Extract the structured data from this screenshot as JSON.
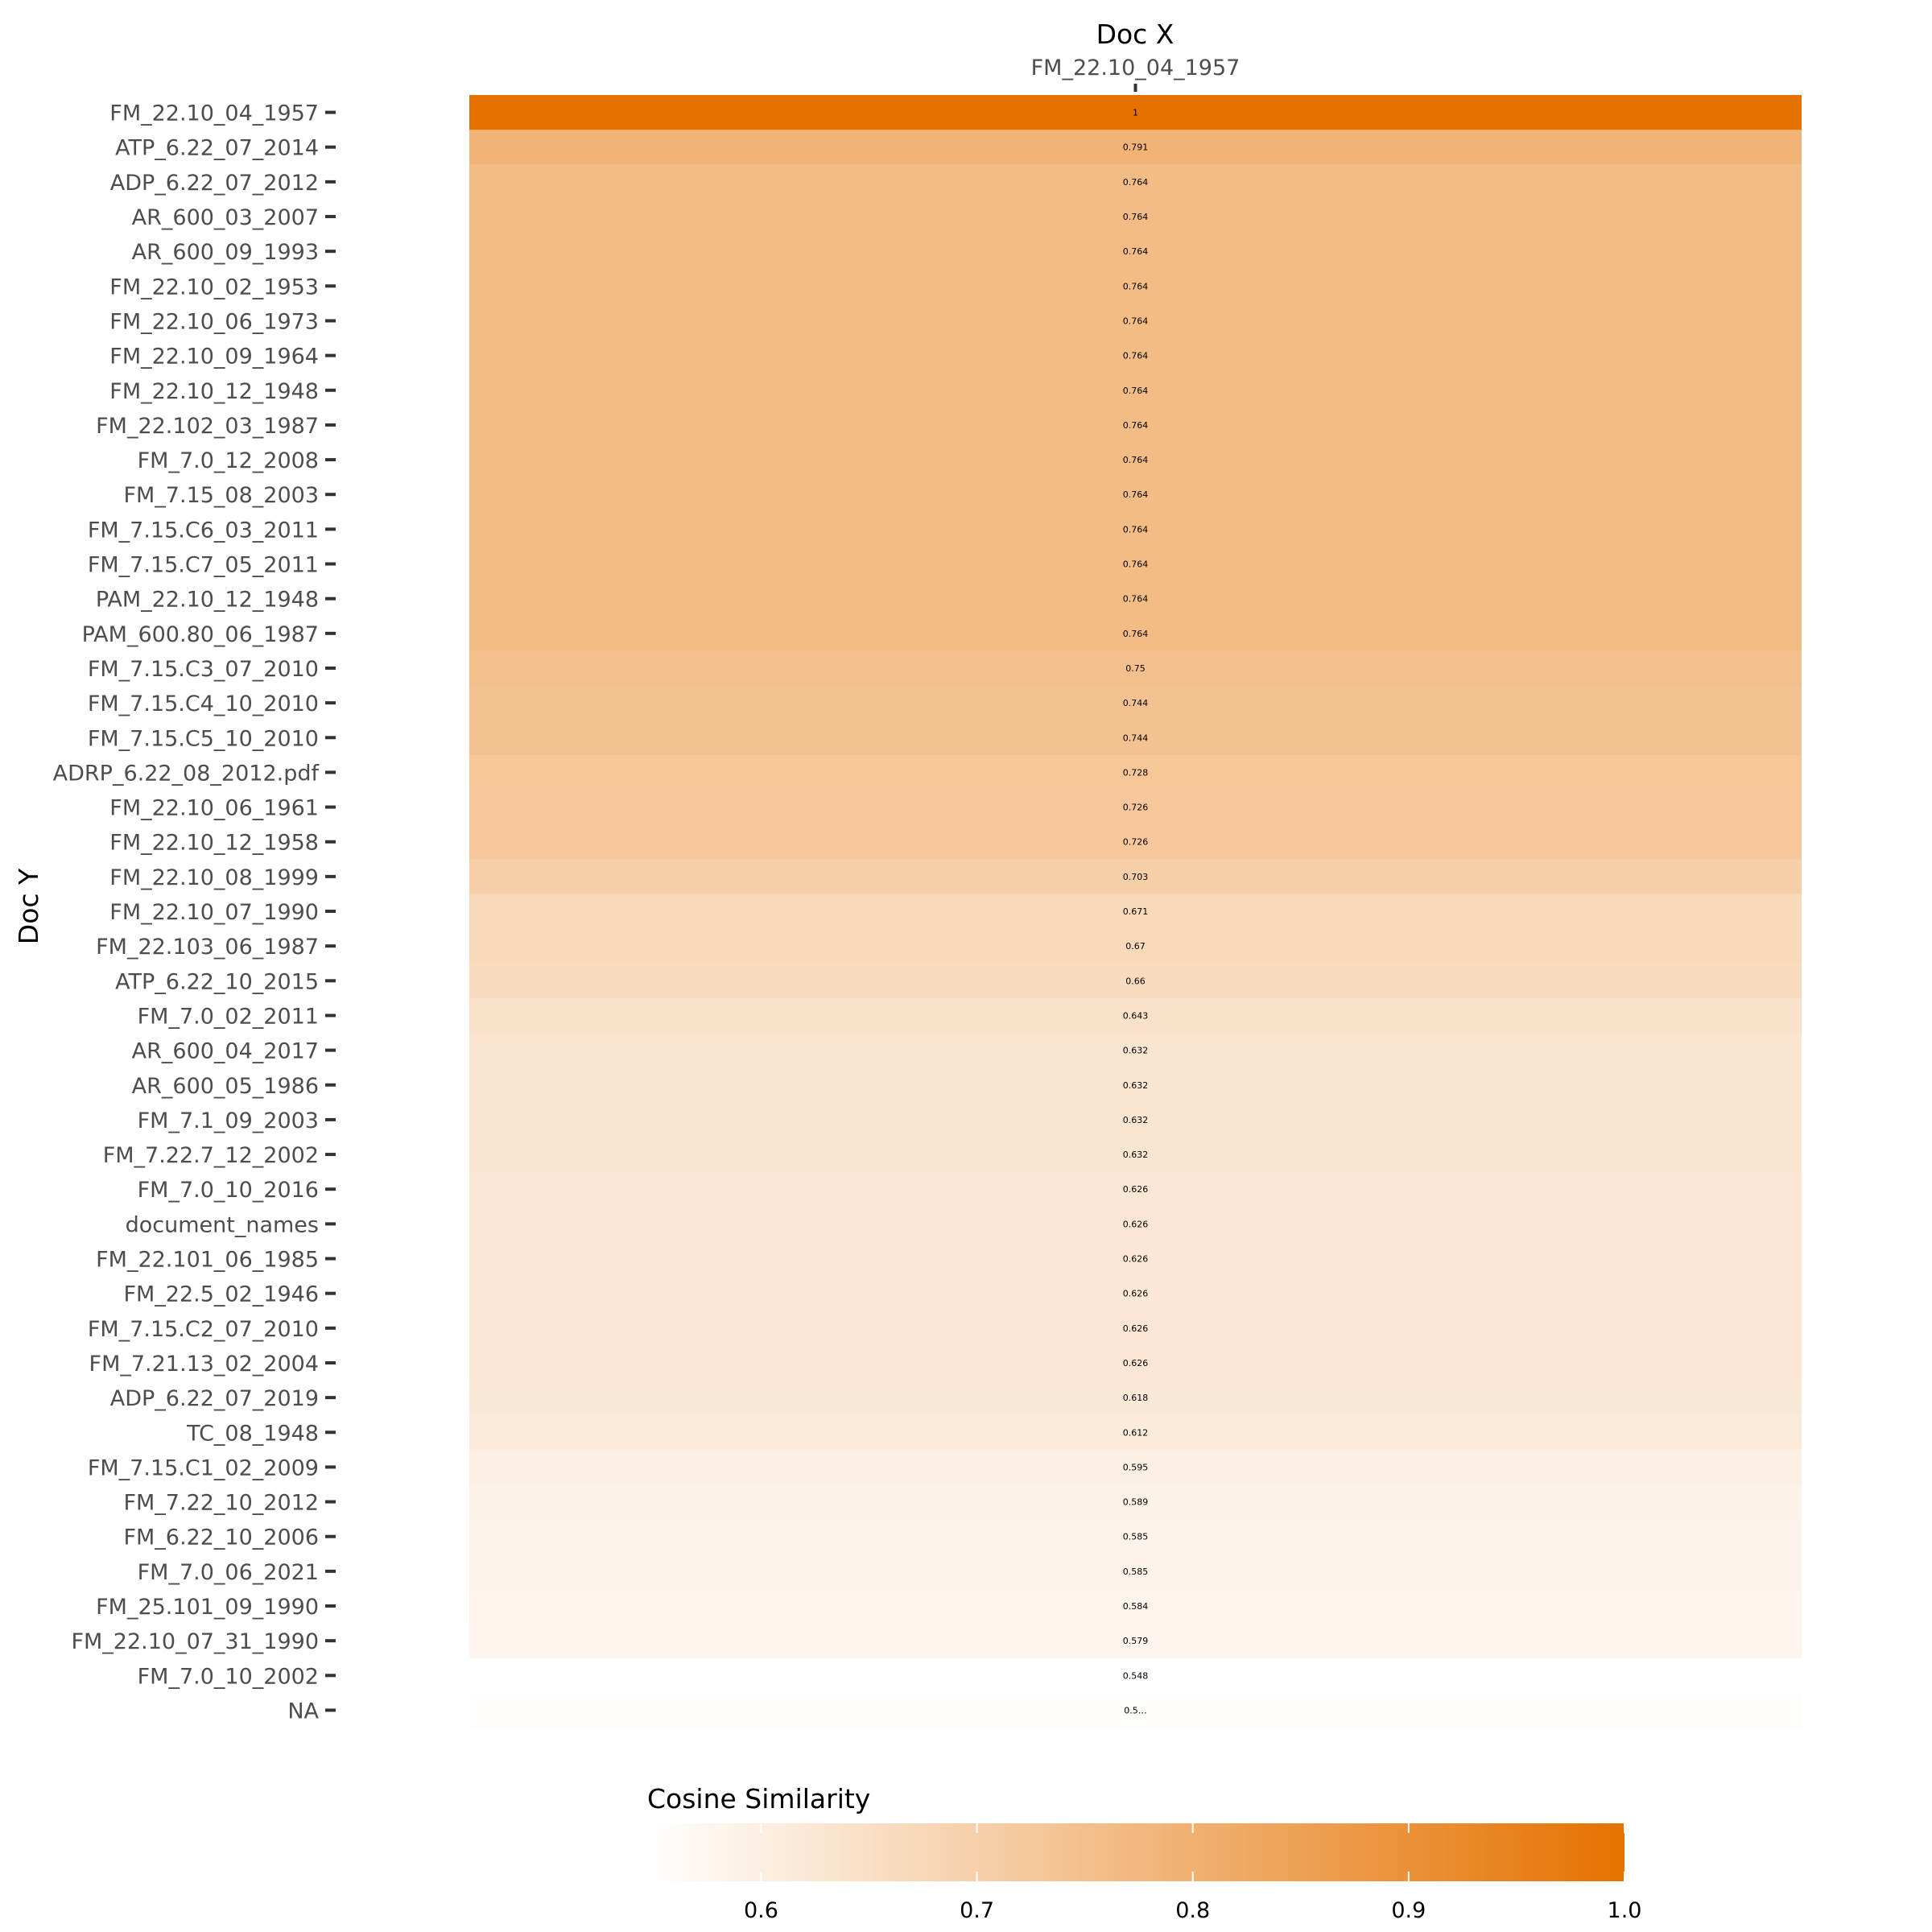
{
  "chart_data": {
    "type": "heatmap",
    "title": "",
    "xlabel": "Doc X",
    "ylabel": "Doc Y",
    "x_categories": [
      "FM_22.10_04_1957"
    ],
    "y_categories": [
      "FM_22.10_04_1957",
      "ATP_6.22_07_2014",
      "ADP_6.22_07_2012",
      "AR_600_03_2007",
      "AR_600_09_1993",
      "FM_22.10_02_1953",
      "FM_22.10_06_1973",
      "FM_22.10_09_1964",
      "FM_22.10_12_1948",
      "FM_22.102_03_1987",
      "FM_7.0_12_2008",
      "FM_7.15_08_2003",
      "FM_7.15.C6_03_2011",
      "FM_7.15.C7_05_2011",
      "PAM_22.10_12_1948",
      "PAM_600.80_06_1987",
      "FM_7.15.C3_07_2010",
      "FM_7.15.C4_10_2010",
      "FM_7.15.C5_10_2010",
      "ADRP_6.22_08_2012.pdf",
      "FM_22.10_06_1961",
      "FM_22.10_12_1958",
      "FM_22.10_08_1999",
      "FM_22.10_07_1990",
      "FM_22.103_06_1987",
      "ATP_6.22_10_2015",
      "FM_7.0_02_2011",
      "AR_600_04_2017",
      "AR_600_05_1986",
      "FM_7.1_09_2003",
      "FM_7.22.7_12_2002",
      "FM_7.0_10_2016",
      "document_names",
      "FM_22.101_06_1985",
      "FM_22.5_02_1946",
      "FM_7.15.C2_07_2010",
      "FM_7.21.13_02_2004",
      "ADP_6.22_07_2019",
      "TC_08_1948",
      "FM_7.15.C1_02_2009",
      "FM_7.22_10_2012",
      "FM_6.22_10_2006",
      "FM_7.0_06_2021",
      "FM_25.101_09_1990",
      "FM_22.10_07_31_1990",
      "FM_7.0_10_2002",
      "NA"
    ],
    "values": [
      1,
      0.791,
      0.764,
      0.764,
      0.764,
      0.764,
      0.764,
      0.764,
      0.764,
      0.764,
      0.764,
      0.764,
      0.764,
      0.764,
      0.764,
      0.764,
      0.75,
      0.744,
      0.744,
      0.728,
      0.726,
      0.726,
      0.703,
      0.671,
      0.67,
      0.66,
      0.643,
      0.632,
      0.632,
      0.632,
      0.632,
      0.626,
      0.626,
      0.626,
      0.626,
      0.626,
      0.626,
      0.618,
      0.612,
      0.595,
      0.589,
      0.585,
      0.585,
      0.584,
      0.579,
      0.548,
      null
    ],
    "value_labels": [
      "1",
      "0.791",
      "0.764",
      "0.764",
      "0.764",
      "0.764",
      "0.764",
      "0.764",
      "0.764",
      "0.764",
      "0.764",
      "0.764",
      "0.764",
      "0.764",
      "0.764",
      "0.764",
      "0.75",
      "0.744",
      "0.744",
      "0.728",
      "0.726",
      "0.726",
      "0.703",
      "0.671",
      "0.67",
      "0.66",
      "0.643",
      "0.632",
      "0.632",
      "0.632",
      "0.632",
      "0.626",
      "0.626",
      "0.626",
      "0.626",
      "0.626",
      "0.626",
      "0.618",
      "0.612",
      "0.595",
      "0.589",
      "0.585",
      "0.585",
      "0.584",
      "0.579",
      "0.548",
      "0.5…"
    ],
    "legend": {
      "title": "Cosine Similarity",
      "position": "bottom",
      "min": 0.548,
      "max": 1.0,
      "ticks": [
        "0.6",
        "0.7",
        "0.8",
        "0.9",
        "1.0"
      ],
      "low_color": "#ffffff",
      "high_color": "#e57200"
    },
    "grid": false
  }
}
